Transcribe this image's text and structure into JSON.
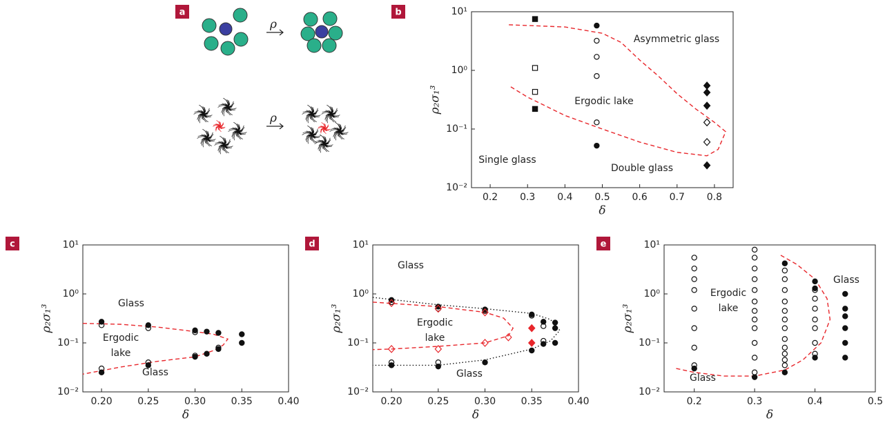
{
  "panels": {
    "a": {
      "label": "a",
      "arrows": [
        "ρ",
        "ρ"
      ]
    }
  },
  "chart_data": [
    {
      "type": "scatter",
      "label": "b",
      "xlabel": "δ",
      "ylabel": "ρ₂σ₁³",
      "log_y": true,
      "xlim": [
        0.15,
        0.85
      ],
      "xticks": [
        0.2,
        0.3,
        0.4,
        0.5,
        0.6,
        0.7,
        0.8
      ],
      "ylim": [
        0.01,
        10
      ],
      "yticks": [
        {
          "value": 0.01,
          "label": "10⁻²"
        },
        {
          "value": 0.1,
          "label": "10⁻¹"
        },
        {
          "value": 1,
          "label": "10⁰"
        },
        {
          "value": 10,
          "label": "10¹"
        }
      ],
      "annotations": [
        "Asymmetric glass",
        "Ergodic lake",
        "Single glass",
        "Double glass"
      ],
      "series": [
        {
          "style": "dashed",
          "color": "#e8262b",
          "x": [
            0.25,
            0.4,
            0.5,
            0.55,
            0.6,
            0.65,
            0.7,
            0.75,
            0.8,
            0.83,
            0.81,
            0.78,
            0.7,
            0.6,
            0.5,
            0.4,
            0.3,
            0.25
          ],
          "values": [
            6,
            5.5,
            4.3,
            3,
            1.5,
            0.8,
            0.4,
            0.22,
            0.13,
            0.09,
            0.045,
            0.035,
            0.04,
            0.06,
            0.1,
            0.17,
            0.35,
            0.55
          ]
        },
        {
          "marker": "square",
          "color": "#111",
          "fill": "#111",
          "x": [
            0.32,
            0.32
          ],
          "values": [
            7.5,
            0.22
          ]
        },
        {
          "marker": "square",
          "color": "#111",
          "fill": "none",
          "x": [
            0.32,
            0.32
          ],
          "values": [
            1.1,
            0.43
          ]
        },
        {
          "marker": "circle",
          "color": "#111",
          "fill": "#111",
          "x": [
            0.485,
            0.485
          ],
          "values": [
            5.8,
            0.052
          ]
        },
        {
          "marker": "circle",
          "color": "#111",
          "fill": "none",
          "x": [
            0.485,
            0.485,
            0.485,
            0.485
          ],
          "values": [
            3.2,
            1.7,
            0.8,
            0.13
          ]
        },
        {
          "marker": "diamond",
          "color": "#111",
          "fill": "#111",
          "x": [
            0.78,
            0.78,
            0.78,
            0.78
          ],
          "values": [
            0.55,
            0.42,
            0.25,
            0.024
          ]
        },
        {
          "marker": "diamond",
          "color": "#111",
          "fill": "none",
          "x": [
            0.78,
            0.78
          ],
          "values": [
            0.13,
            0.06
          ]
        }
      ]
    },
    {
      "type": "scatter",
      "label": "c",
      "xlabel": "δ",
      "ylabel": "ρ₂σ₁³",
      "log_y": true,
      "xlim": [
        0.18,
        0.4
      ],
      "xticks": [
        {
          "value": 0.2,
          "label": "0.20"
        },
        0.25,
        {
          "value": 0.3,
          "label": "0.30"
        },
        0.35,
        {
          "value": 0.4,
          "label": "0.40"
        }
      ],
      "ylim": [
        0.01,
        10
      ],
      "yticks": [
        {
          "value": 0.01,
          "label": "10⁻²"
        },
        {
          "value": 0.1,
          "label": "10⁻¹"
        },
        {
          "value": 1,
          "label": "10⁰"
        },
        {
          "value": 10,
          "label": "10¹"
        }
      ],
      "annotations": [
        "Glass",
        "Ergodic",
        "lake",
        "Glass"
      ],
      "series": [
        {
          "style": "dashed",
          "color": "#e8262b",
          "x": [
            0.18,
            0.22,
            0.26,
            0.3,
            0.32,
            0.335,
            0.33,
            0.32,
            0.3,
            0.26,
            0.22,
            0.18
          ],
          "values": [
            0.25,
            0.24,
            0.21,
            0.17,
            0.15,
            0.12,
            0.09,
            0.07,
            0.052,
            0.042,
            0.032,
            0.023
          ]
        },
        {
          "marker": "circle",
          "color": "#111",
          "fill": "#111",
          "x": [
            0.2,
            0.2,
            0.25,
            0.25,
            0.3,
            0.3,
            0.3125,
            0.3125,
            0.325,
            0.325,
            0.35,
            0.35
          ],
          "values": [
            0.27,
            0.025,
            0.23,
            0.035,
            0.18,
            0.052,
            0.17,
            0.06,
            0.16,
            0.075,
            0.15,
            0.1
          ]
        },
        {
          "marker": "circle",
          "color": "#111",
          "fill": "none",
          "x": [
            0.2,
            0.2,
            0.25,
            0.25,
            0.3,
            0.3,
            0.325
          ],
          "values": [
            0.23,
            0.03,
            0.2,
            0.04,
            0.165,
            0.055,
            0.08
          ]
        }
      ]
    },
    {
      "type": "scatter",
      "label": "d",
      "xlabel": "δ",
      "ylabel": "ρ₂σ₁³",
      "log_y": true,
      "xlim": [
        0.18,
        0.4
      ],
      "xticks": [
        {
          "value": 0.2,
          "label": "0.20"
        },
        0.25,
        {
          "value": 0.3,
          "label": "0.30"
        },
        0.35,
        {
          "value": 0.4,
          "label": "0.40"
        }
      ],
      "ylim": [
        0.01,
        10
      ],
      "yticks": [
        {
          "value": 0.01,
          "label": "10⁻²"
        },
        {
          "value": 0.1,
          "label": "10⁻¹"
        },
        {
          "value": 1,
          "label": "10⁰"
        },
        {
          "value": 10,
          "label": "10¹"
        }
      ],
      "annotations": [
        "Glass",
        "Ergodic",
        "lake",
        "Glass"
      ],
      "series": [
        {
          "style": "dotted",
          "color": "#111",
          "x": [
            0.18,
            0.25,
            0.3,
            0.35,
            0.37,
            0.38,
            0.375,
            0.37,
            0.35,
            0.3,
            0.25,
            0.18
          ],
          "values": [
            0.85,
            0.6,
            0.5,
            0.4,
            0.3,
            0.18,
            0.14,
            0.11,
            0.075,
            0.045,
            0.035,
            0.035
          ]
        },
        {
          "style": "dashed",
          "color": "#e8262b",
          "x": [
            0.18,
            0.25,
            0.3,
            0.32,
            0.33,
            0.325,
            0.3,
            0.25,
            0.2,
            0.18
          ],
          "values": [
            0.68,
            0.55,
            0.42,
            0.32,
            0.2,
            0.14,
            0.1,
            0.085,
            0.075,
            0.073
          ]
        },
        {
          "marker": "circle",
          "color": "#111",
          "fill": "#111",
          "x": [
            0.2,
            0.2,
            0.25,
            0.25,
            0.3,
            0.3,
            0.35,
            0.35,
            0.3625,
            0.3625,
            0.375,
            0.375,
            0.375
          ],
          "values": [
            0.75,
            0.035,
            0.55,
            0.033,
            0.48,
            0.04,
            0.38,
            0.07,
            0.27,
            0.095,
            0.26,
            0.1,
            0.2
          ]
        },
        {
          "marker": "circle",
          "color": "#111",
          "fill": "none",
          "x": [
            0.2,
            0.2,
            0.25,
            0.25,
            0.3,
            0.35,
            0.3625,
            0.3625
          ],
          "values": [
            0.68,
            0.04,
            0.5,
            0.04,
            0.45,
            0.36,
            0.11,
            0.22
          ]
        },
        {
          "marker": "diamond",
          "color": "#e8262b",
          "fill": "none",
          "x": [
            0.2,
            0.2,
            0.25,
            0.25,
            0.3,
            0.3,
            0.325
          ],
          "values": [
            0.65,
            0.075,
            0.5,
            0.075,
            0.42,
            0.1,
            0.13
          ]
        },
        {
          "marker": "diamond",
          "color": "#e8262b",
          "fill": "#e8262b",
          "x": [
            0.35,
            0.35
          ],
          "values": [
            0.2,
            0.1
          ]
        }
      ]
    },
    {
      "type": "scatter",
      "label": "e",
      "xlabel": "δ",
      "ylabel": "ρ₂σ₁³",
      "log_y": true,
      "xlim": [
        0.15,
        0.5
      ],
      "xticks": [
        0.2,
        0.3,
        0.4,
        0.5
      ],
      "ylim": [
        0.01,
        10
      ],
      "yticks": [
        {
          "value": 0.01,
          "label": "10⁻²"
        },
        {
          "value": 0.1,
          "label": "10⁻¹"
        },
        {
          "value": 1,
          "label": "10⁰"
        },
        {
          "value": 10,
          "label": "10¹"
        }
      ],
      "annotations": [
        "Ergodic",
        "lake",
        "Glass",
        "Glass"
      ],
      "series": [
        {
          "style": "dashed",
          "color": "#e8262b",
          "x": [
            0.17,
            0.2,
            0.25,
            0.3,
            0.35,
            0.38,
            0.41,
            0.425,
            0.42,
            0.4,
            0.37,
            0.34
          ],
          "values": [
            0.03,
            0.025,
            0.021,
            0.021,
            0.028,
            0.045,
            0.1,
            0.3,
            0.8,
            2,
            4,
            6.5
          ]
        },
        {
          "marker": "circle",
          "color": "#111",
          "fill": "none",
          "x": [
            0.2,
            0.2,
            0.2,
            0.2,
            0.2,
            0.2,
            0.2,
            0.2,
            0.3,
            0.3,
            0.3,
            0.3,
            0.3,
            0.3,
            0.3,
            0.3,
            0.3,
            0.3,
            0.3,
            0.3,
            0.35,
            0.35,
            0.35,
            0.35,
            0.35,
            0.35,
            0.35,
            0.35,
            0.35,
            0.35,
            0.35,
            0.35,
            0.4,
            0.4,
            0.4,
            0.4,
            0.4,
            0.4,
            0.4
          ],
          "values": [
            5.5,
            3.3,
            2,
            1.2,
            0.5,
            0.2,
            0.08,
            0.035,
            8,
            5.5,
            3.3,
            2,
            1.2,
            0.7,
            0.45,
            0.3,
            0.2,
            0.1,
            0.05,
            0.025,
            3,
            2,
            1.2,
            0.7,
            0.45,
            0.3,
            0.2,
            0.12,
            0.08,
            0.06,
            0.045,
            0.035,
            1.2,
            0.8,
            0.5,
            0.3,
            0.2,
            0.1,
            0.06
          ]
        },
        {
          "marker": "circle",
          "color": "#111",
          "fill": "#111",
          "x": [
            0.2,
            0.3,
            0.35,
            0.35,
            0.4,
            0.4,
            0.4,
            0.45,
            0.45,
            0.45,
            0.45,
            0.45,
            0.45
          ],
          "values": [
            0.03,
            0.02,
            4.2,
            0.025,
            1.8,
            1.3,
            0.05,
            1,
            0.5,
            0.35,
            0.2,
            0.1,
            0.05
          ]
        }
      ]
    }
  ]
}
